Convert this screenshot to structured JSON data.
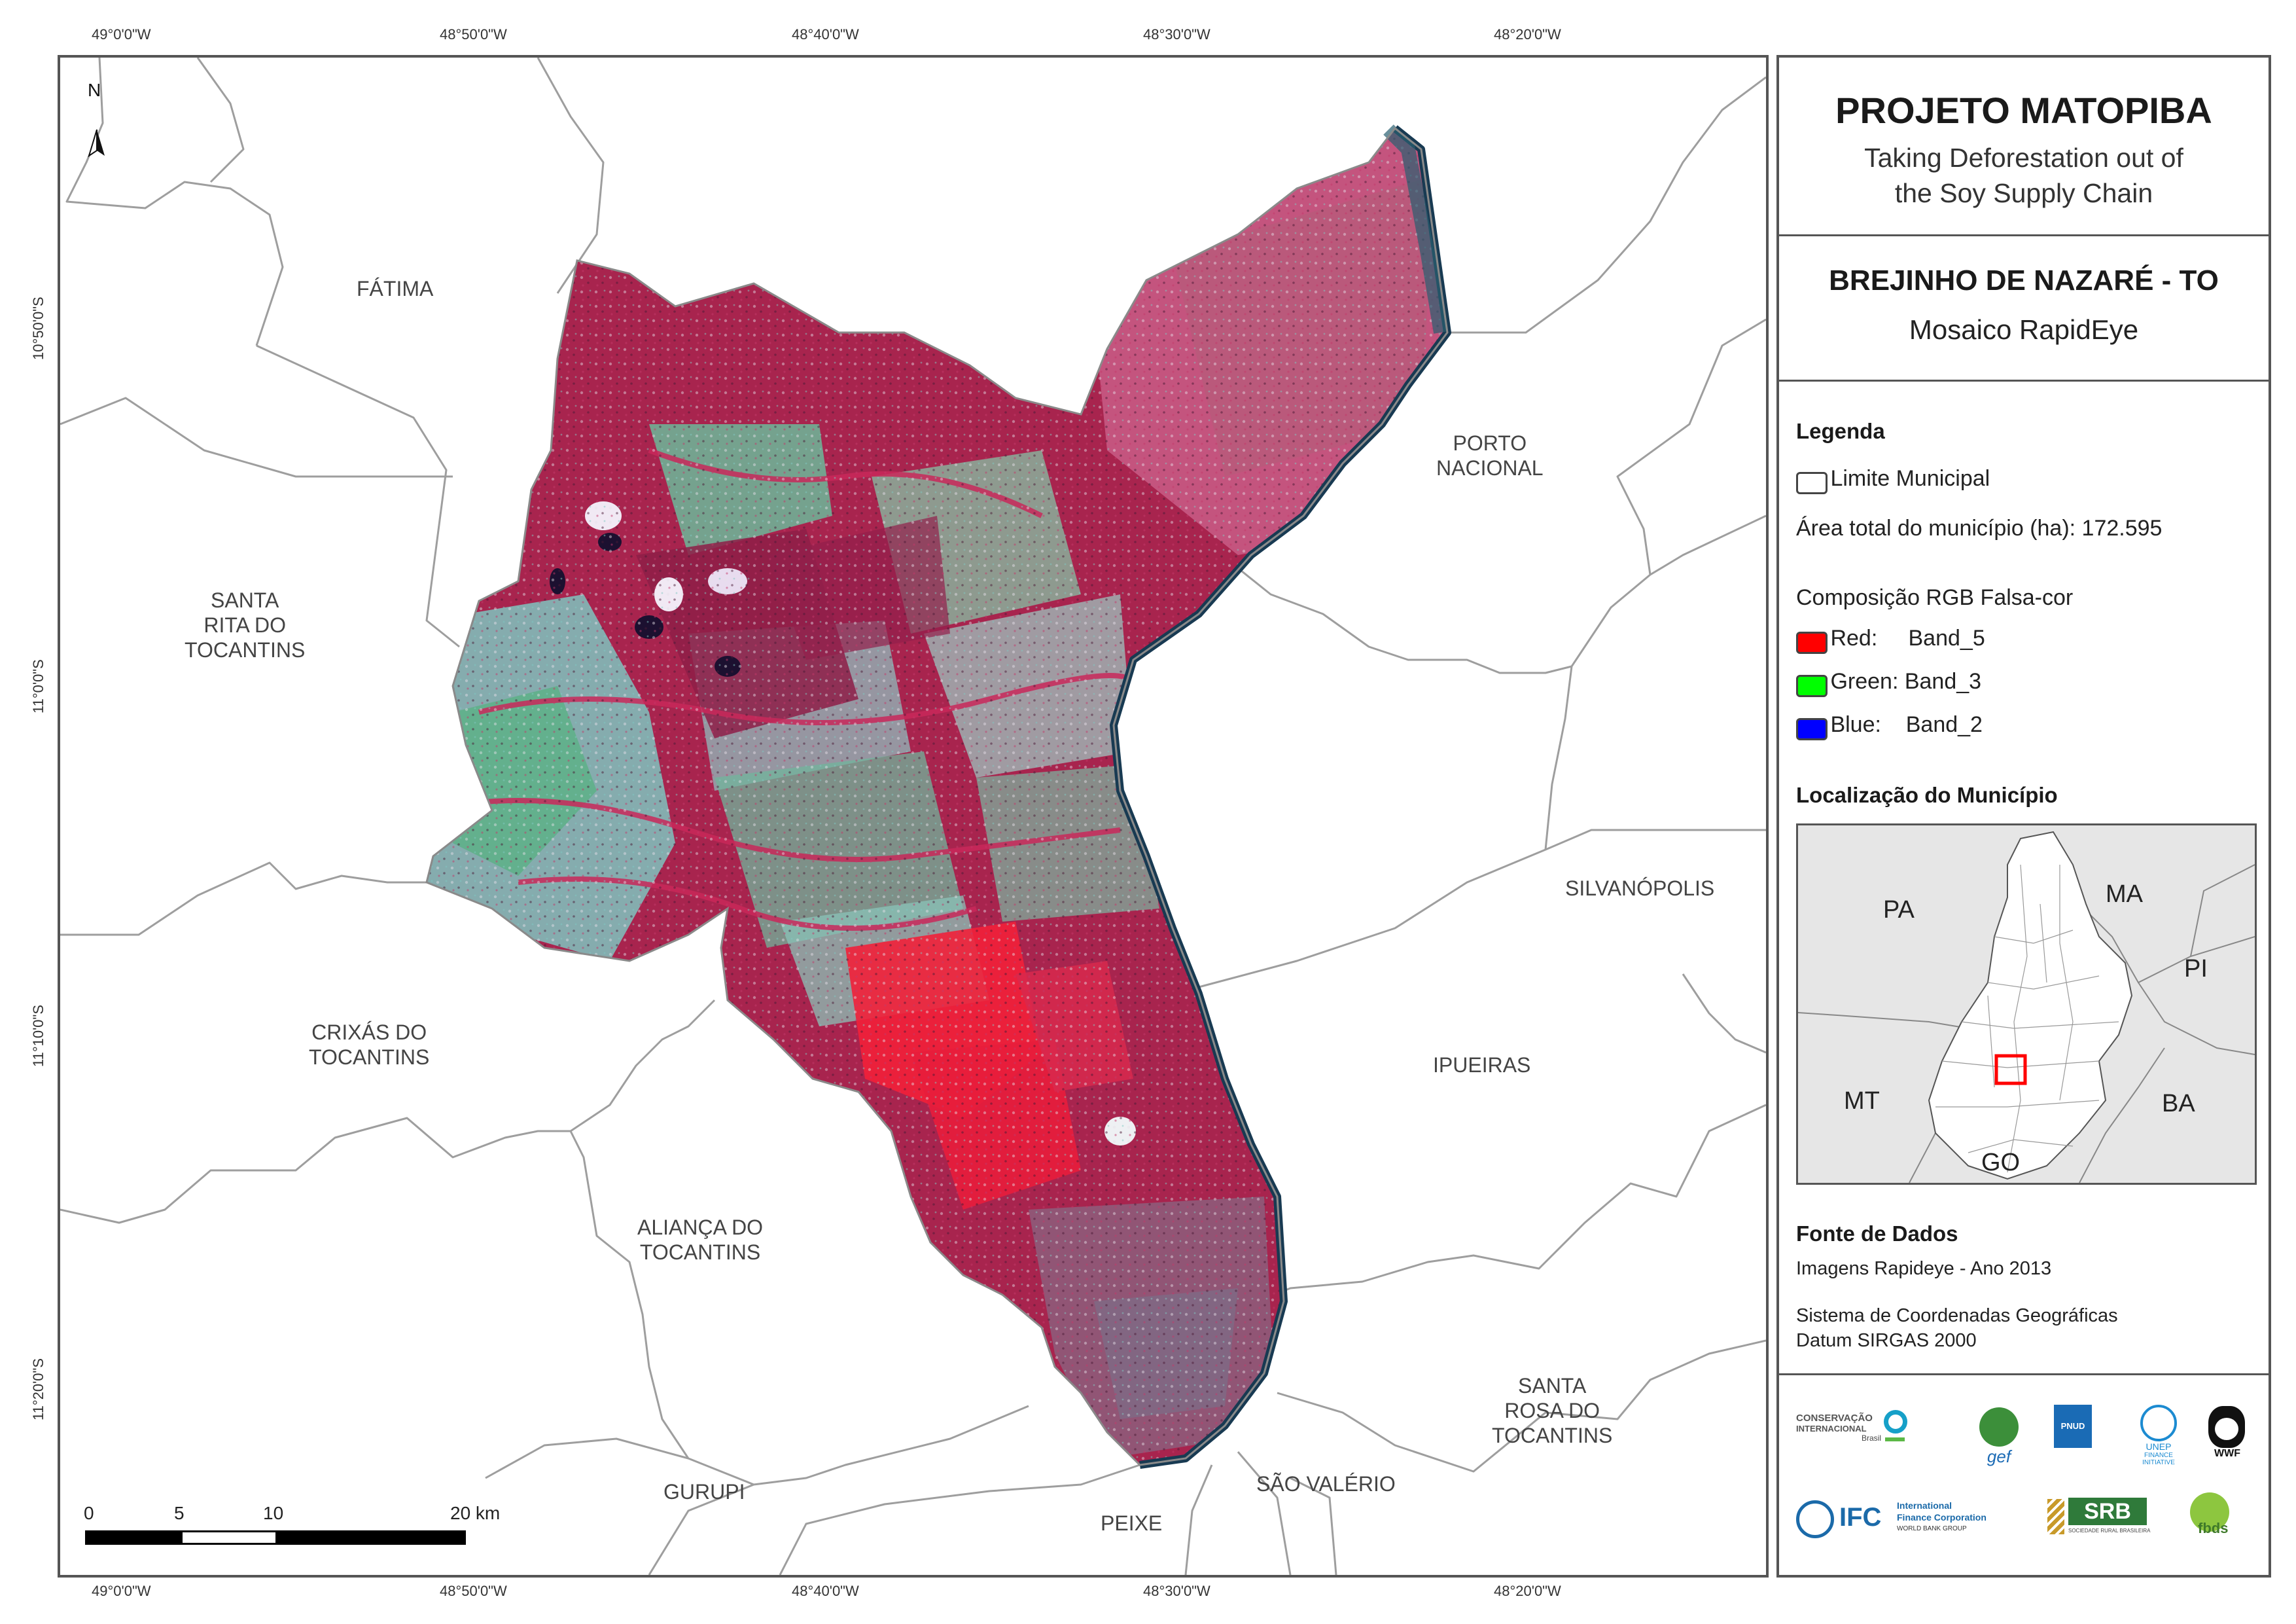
{
  "coords": {
    "top": [
      "49°0'0\"W",
      "48°50'0\"W",
      "48°40'0\"W",
      "48°30'0\"W",
      "48°20'0\"W"
    ],
    "bottom": [
      "49°0'0\"W",
      "48°50'0\"W",
      "48°40'0\"W",
      "48°30'0\"W",
      "48°20'0\"W"
    ],
    "left": [
      "10°50'0\"S",
      "11°0'0\"S",
      "11°10'0\"S",
      "11°20'0\"S"
    ]
  },
  "north_arrow": "N",
  "municipalities": {
    "fatima": "FÁTIMA",
    "porto_nacional_1": "PORTO",
    "porto_nacional_2": "NACIONAL",
    "santa_rita_1": "SANTA",
    "santa_rita_2": "RITA DO",
    "santa_rita_3": "TOCANTINS",
    "silvanopolis": "SILVANÓPOLIS",
    "crixas_1": "CRIXÁS DO",
    "crixas_2": "TOCANTINS",
    "ipueiras": "IPUEIRAS",
    "alianca_1": "ALIANÇA DO",
    "alianca_2": "TOCANTINS",
    "santa_rosa_1": "SANTA",
    "santa_rosa_2": "ROSA DO",
    "santa_rosa_3": "TOCANTINS",
    "gurupi": "GURUPI",
    "sao_valerio": "SÃO VALÉRIO",
    "peixe": "PEIXE"
  },
  "scalebar": {
    "ticks": [
      "0",
      "5",
      "10",
      "20 km"
    ]
  },
  "panel": {
    "title": "PROJETO MATOPIBA",
    "subtitle_1": "Taking Deforestation out of",
    "subtitle_2": "the Soy Supply Chain",
    "municipality": "BREJINHO DE NAZARÉ - TO",
    "mosaic": "Mosaico RapidEye",
    "legend_title": "Legenda",
    "limite": "Limite Municipal",
    "area": "Área total do município (ha): 172.595",
    "rgb_title": "Composição RGB Falsa-cor",
    "bands": [
      {
        "label": "Red:     Band_5",
        "color": "#ff0000"
      },
      {
        "label": "Green: Band_3",
        "color": "#00ff00"
      },
      {
        "label": "Blue:    Band_2",
        "color": "#0000ff"
      }
    ],
    "location_title": "Localização do Município",
    "states": {
      "pa": "PA",
      "ma": "MA",
      "pi": "PI",
      "mt": "MT",
      "ba": "BA",
      "go": "GO"
    },
    "sources_title": "Fonte de Dados",
    "source_1": "Imagens Rapideye - Ano 2013",
    "source_2": "Sistema de Coordenadas Geográficas",
    "source_3": "Datum SIRGAS 2000"
  },
  "logos": {
    "ci_1": "CONSERVAÇÃO",
    "ci_2": "INTERNACIONAL",
    "ci_3": "Brasil",
    "gef": "gef",
    "pnud": "PNUD",
    "unep_1": "UNEP",
    "unep_2": "FINANCE",
    "unep_3": "INITIATIVE",
    "wwf": "WWF",
    "ifc": "IFC",
    "ifc_1": "International",
    "ifc_2": "Finance Corporation",
    "ifc_3": "WORLD BANK GROUP",
    "srb": "SRB",
    "srb_sub": "SOCIEDADE RURAL BRASILEIRA",
    "fbds": "fbds"
  },
  "colors": {
    "frame": "#555555",
    "boundary": "#9a9a9a",
    "imagery_magenta": "#a8244e",
    "imagery_pink": "#d94a86",
    "imagery_cyan": "#8fd0d0",
    "imagery_green": "#5fb08a",
    "imagery_red": "#f2203a",
    "river": "#183a52",
    "locator_bg": "#e6e6e6",
    "highlight": "#ff0000"
  }
}
